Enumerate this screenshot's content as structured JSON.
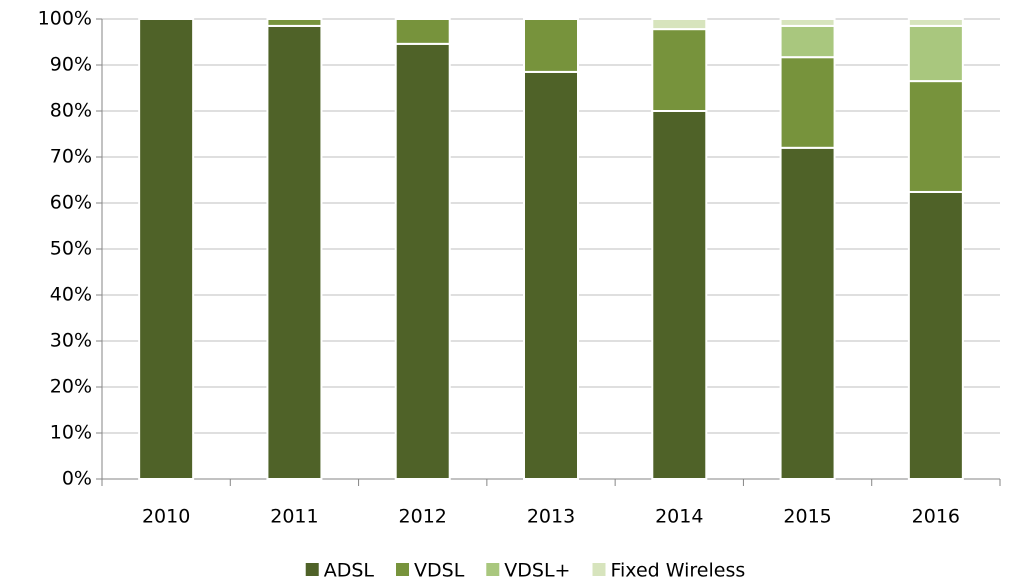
{
  "chart_data": {
    "type": "stacked_bar",
    "categories": [
      "2010",
      "2011",
      "2012",
      "2013",
      "2014",
      "2015",
      "2016"
    ],
    "series": [
      {
        "name": "ADSL",
        "color": "#4f6228",
        "values": [
          100,
          98.5,
          94.6,
          88.5,
          80,
          72,
          62.4
        ]
      },
      {
        "name": "VDSL",
        "color": "#77933c",
        "values": [
          0,
          1.5,
          5.4,
          11.5,
          17.8,
          19.7,
          24.1
        ]
      },
      {
        "name": "VDSL+",
        "color": "#a9c77e",
        "values": [
          0,
          0,
          0,
          0,
          0,
          6.8,
          12
        ]
      },
      {
        "name": "Fixed Wireless",
        "color": "#d7e4bd",
        "values": [
          0,
          0,
          0,
          0,
          2.2,
          1.5,
          1.5
        ]
      }
    ],
    "ylim": [
      0,
      100
    ],
    "yticks": [
      {
        "value": 0,
        "label": "0%"
      },
      {
        "value": 10,
        "label": "10%"
      },
      {
        "value": 20,
        "label": "20%"
      },
      {
        "value": 30,
        "label": "30%"
      },
      {
        "value": 40,
        "label": "40%"
      },
      {
        "value": 50,
        "label": "50%"
      },
      {
        "value": 60,
        "label": "60%"
      },
      {
        "value": 70,
        "label": "70%"
      },
      {
        "value": 80,
        "label": "80%"
      },
      {
        "value": 90,
        "label": "90%"
      },
      {
        "value": 100,
        "label": "100%"
      }
    ],
    "grid": true,
    "legend": "bottom"
  }
}
